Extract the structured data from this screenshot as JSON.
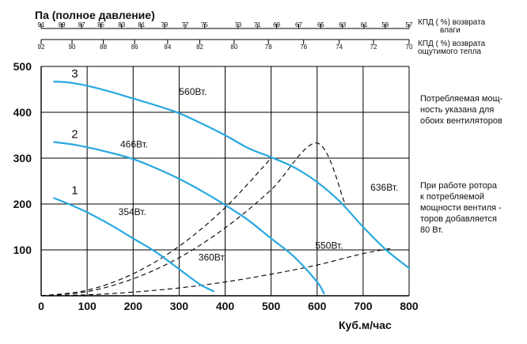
{
  "chart_data": {
    "type": "line",
    "title": "Па (полное давление)",
    "xlabel": "Куб.м/час",
    "xlim": [
      0,
      800
    ],
    "ylim": [
      0,
      500
    ],
    "xticks": [
      "0",
      "100",
      "200",
      "300",
      "400",
      "500",
      "600",
      "700",
      "800"
    ],
    "yticks": [
      "100",
      "200",
      "300",
      "400",
      "500"
    ],
    "grid": true,
    "moisture_scale": {
      "label": [
        "КПД ( %) возврата",
        "влаги"
      ],
      "ticks": [
        {
          "label": "91",
          "x": 0
        },
        {
          "label": "89",
          "x": 45
        },
        {
          "label": "87",
          "x": 88
        },
        {
          "label": "85",
          "x": 130
        },
        {
          "label": "83",
          "x": 175
        },
        {
          "label": "81",
          "x": 218
        },
        {
          "label": "79",
          "x": 268
        },
        {
          "label": "77",
          "x": 313
        },
        {
          "label": "75",
          "x": 355
        },
        {
          "label": "73",
          "x": 428
        },
        {
          "label": "71",
          "x": 470
        },
        {
          "label": "69",
          "x": 512
        },
        {
          "label": "67",
          "x": 560
        },
        {
          "label": "65",
          "x": 608
        },
        {
          "label": "63",
          "x": 655
        },
        {
          "label": "61",
          "x": 702
        },
        {
          "label": "59",
          "x": 748
        },
        {
          "label": "57",
          "x": 800
        }
      ]
    },
    "heat_scale": {
      "label": [
        "КПД ( %) возврата",
        "ощутимого тепла"
      ],
      "ticks": [
        {
          "label": "92",
          "x": 0
        },
        {
          "label": "90",
          "x": 72
        },
        {
          "label": "88",
          "x": 145
        },
        {
          "label": "86",
          "x": 218
        },
        {
          "label": "84",
          "x": 295
        },
        {
          "label": "82",
          "x": 370
        },
        {
          "label": "80",
          "x": 450
        },
        {
          "label": "78",
          "x": 530
        },
        {
          "label": "76",
          "x": 612
        },
        {
          "label": "74",
          "x": 695
        },
        {
          "label": "72",
          "x": 775
        },
        {
          "label": "70",
          "x": 858
        }
      ]
    },
    "series": [
      {
        "name": "1",
        "power": "354Вт.",
        "points": [
          [
            28,
            213
          ],
          [
            60,
            200
          ],
          [
            100,
            182
          ],
          [
            150,
            155
          ],
          [
            200,
            125
          ],
          [
            250,
            95
          ],
          [
            300,
            58
          ],
          [
            345,
            25
          ],
          [
            375,
            10
          ]
        ]
      },
      {
        "name": "2",
        "power": "466Вт.",
        "points": [
          [
            28,
            335
          ],
          [
            80,
            328
          ],
          [
            150,
            312
          ],
          [
            200,
            298
          ],
          [
            250,
            278
          ],
          [
            300,
            255
          ],
          [
            350,
            228
          ],
          [
            400,
            198
          ],
          [
            450,
            165
          ],
          [
            500,
            125
          ],
          [
            550,
            85
          ],
          [
            600,
            30
          ],
          [
            615,
            5
          ]
        ]
      },
      {
        "name": "3",
        "power": "560Вт.",
        "points": [
          [
            28,
            467
          ],
          [
            60,
            465
          ],
          [
            100,
            458
          ],
          [
            150,
            445
          ],
          [
            200,
            430
          ],
          [
            250,
            415
          ],
          [
            300,
            398
          ],
          [
            350,
            375
          ],
          [
            400,
            350
          ],
          [
            450,
            322
          ],
          [
            500,
            302
          ],
          [
            550,
            280
          ],
          [
            600,
            248
          ],
          [
            650,
            205
          ],
          [
            700,
            150
          ],
          [
            750,
            100
          ],
          [
            800,
            60
          ]
        ]
      }
    ],
    "system_curves": [
      {
        "points": [
          [
            0,
            0
          ],
          [
            100,
            12
          ],
          [
            200,
            48
          ],
          [
            300,
            108
          ],
          [
            400,
            192
          ],
          [
            500,
            300
          ]
        ]
      },
      {
        "points": [
          [
            0,
            0
          ],
          [
            100,
            9
          ],
          [
            200,
            37
          ],
          [
            300,
            83
          ],
          [
            400,
            148
          ],
          [
            500,
            231
          ],
          [
            600,
            333
          ],
          [
            660,
            203
          ]
        ]
      },
      {
        "points": [
          [
            0,
            0
          ],
          [
            100,
            2
          ],
          [
            200,
            8
          ],
          [
            300,
            17
          ],
          [
            400,
            30
          ],
          [
            500,
            47
          ],
          [
            600,
            67
          ],
          [
            700,
            92
          ],
          [
            760,
            103
          ]
        ]
      }
    ],
    "annotations": [
      {
        "text": "560Вт.",
        "x": 300,
        "y": 438
      },
      {
        "text": "466Вт.",
        "x": 172,
        "y": 323
      },
      {
        "text": "354Вт.",
        "x": 168,
        "y": 176
      },
      {
        "text": "360Вт.",
        "x": 342,
        "y": 77
      },
      {
        "text": "550Вт.",
        "x": 596,
        "y": 103
      },
      {
        "text": "636Вт.",
        "x": 716,
        "y": 229
      }
    ]
  },
  "notes": [
    {
      "lines": [
        "Потребляемая мощ-",
        "ность указана для",
        "обоих вентиляторов"
      ]
    },
    {
      "lines": [
        "При работе ротора",
        "к потребляемой",
        "мощности вентиля -",
        "торов добавляется",
        "80 Вт."
      ]
    }
  ],
  "colors": {
    "curve": "#29a8e0",
    "grid": "#000000",
    "dashed": "#000000"
  }
}
